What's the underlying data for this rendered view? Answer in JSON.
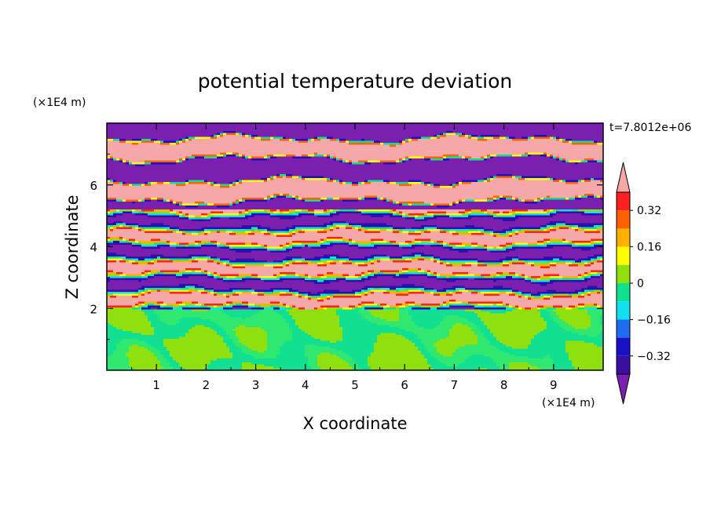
{
  "chart_data": {
    "type": "heatmap",
    "title": "potential temperature deviation",
    "xlabel": "X coordinate",
    "ylabel": "Z coordinate",
    "x_unit": "(×1E4 m)",
    "y_unit": "(×1E4 m)",
    "time_label": "t=7.8012e+06",
    "xlim": [
      0,
      10
    ],
    "ylim": [
      0,
      8
    ],
    "x_ticks": [
      1,
      2,
      3,
      4,
      5,
      6,
      7,
      8,
      9
    ],
    "y_ticks": [
      2,
      4,
      6
    ],
    "colorbar": {
      "levels": [
        -0.4,
        -0.32,
        -0.24,
        -0.16,
        -0.08,
        0,
        0.08,
        0.16,
        0.24,
        0.32,
        0.4
      ],
      "labeled_levels": [
        0.32,
        0.16,
        0,
        -0.16,
        -0.32
      ],
      "colors": [
        "#7a1fb0",
        "#3a0fa0",
        "#1a10c8",
        "#1e6cf0",
        "#10e0f0",
        "#10e090",
        "#90e010",
        "#ffff00",
        "#ffb000",
        "#ff6000",
        "#ff2020",
        "#f5a8a8"
      ],
      "extend": "both"
    },
    "structure": {
      "layered_band_z": [
        2,
        8
      ],
      "lower_region_z": [
        0,
        2
      ],
      "description_regions": [
        {
          "z_range": [
            5.2,
            8
          ],
          "dominant_levels": [
            -0.4,
            0.4
          ]
        },
        {
          "z_range": [
            2,
            5.2
          ],
          "dominant_levels": [
            -0.32,
            0.32
          ]
        },
        {
          "z_range": [
            0,
            2
          ],
          "dominant_levels": [
            -0.08,
            0.08
          ]
        }
      ]
    }
  }
}
